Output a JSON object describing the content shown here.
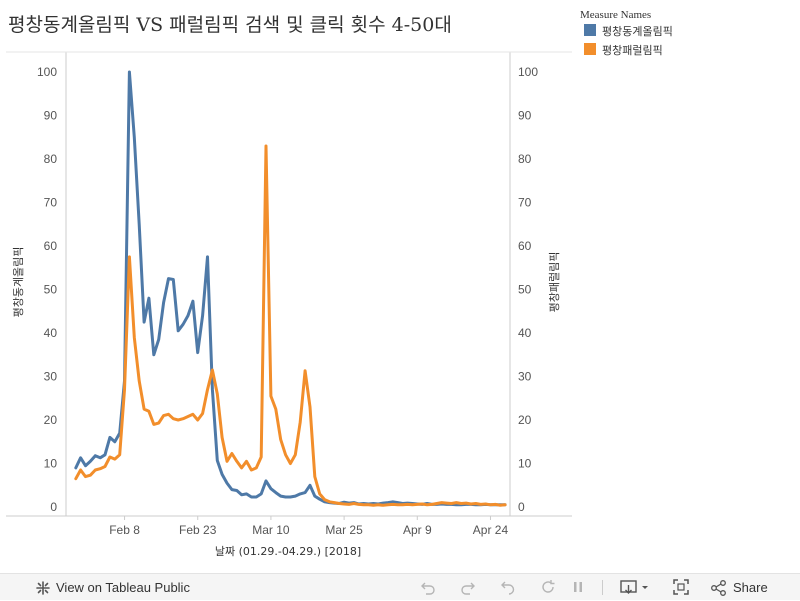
{
  "chart_data": {
    "type": "line",
    "title": "평창동계올림픽 VS 패럴림픽 검색 및 클릭 횟수 4-50대",
    "xlabel": "날짜 (01.29.-04.29.) [2018]",
    "ylabel_left": "평창동계올림픽",
    "ylabel_right": "평창패럴림픽",
    "ylim": [
      0,
      100
    ],
    "y_ticks": [
      0,
      10,
      20,
      30,
      40,
      50,
      60,
      70,
      80,
      90,
      100
    ],
    "x_day_range": [
      -2,
      89
    ],
    "x_ticks": [
      {
        "label": "Feb 8",
        "day": 10
      },
      {
        "label": "Feb 23",
        "day": 25
      },
      {
        "label": "Mar 10",
        "day": 40
      },
      {
        "label": "Mar 25",
        "day": 55
      },
      {
        "label": "Apr 9",
        "day": 70
      },
      {
        "label": "Apr 24",
        "day": 85
      }
    ],
    "legend_title": "Measure Names",
    "series": [
      {
        "name": "평창동계올림픽",
        "color": "#4e79a7",
        "points": [
          [
            0,
            9
          ],
          [
            1,
            11.3
          ],
          [
            2,
            9.5
          ],
          [
            3,
            10.5
          ],
          [
            4,
            11.8
          ],
          [
            5,
            11.3
          ],
          [
            6,
            12
          ],
          [
            7,
            16
          ],
          [
            8,
            15
          ],
          [
            9,
            17
          ],
          [
            10,
            29
          ],
          [
            11,
            100
          ],
          [
            12,
            85
          ],
          [
            13,
            65
          ],
          [
            14,
            42.5
          ],
          [
            15,
            48
          ],
          [
            16,
            35
          ],
          [
            17,
            38.5
          ],
          [
            18,
            47
          ],
          [
            19,
            52.5
          ],
          [
            20,
            52.3
          ],
          [
            21,
            40.5
          ],
          [
            22,
            42
          ],
          [
            23,
            44
          ],
          [
            24,
            47.3
          ],
          [
            25,
            35.5
          ],
          [
            26,
            44
          ],
          [
            27,
            57.5
          ],
          [
            28,
            27
          ],
          [
            29,
            10.7
          ],
          [
            30,
            7.5
          ],
          [
            31,
            5.5
          ],
          [
            32,
            4
          ],
          [
            33,
            3.8
          ],
          [
            34,
            2.8
          ],
          [
            35,
            3
          ],
          [
            36,
            2.3
          ],
          [
            37,
            2.3
          ],
          [
            38,
            3
          ],
          [
            39,
            6
          ],
          [
            40,
            4.2
          ],
          [
            41,
            3.3
          ],
          [
            42,
            2.5
          ],
          [
            43,
            2.3
          ],
          [
            44,
            2.3
          ],
          [
            45,
            2.5
          ],
          [
            46,
            3
          ],
          [
            47,
            3.3
          ],
          [
            48,
            5
          ],
          [
            49,
            2.5
          ],
          [
            50,
            1.8
          ],
          [
            51,
            1.2
          ],
          [
            52,
            1
          ],
          [
            53,
            0.9
          ],
          [
            54,
            0.8
          ],
          [
            55,
            1.1
          ],
          [
            56,
            0.9
          ],
          [
            57,
            1
          ],
          [
            58,
            0.7
          ],
          [
            59,
            0.8
          ],
          [
            60,
            0.7
          ],
          [
            61,
            0.8
          ],
          [
            62,
            0.7
          ],
          [
            63,
            0.9
          ],
          [
            64,
            1
          ],
          [
            65,
            1.2
          ],
          [
            66,
            1
          ],
          [
            67,
            0.8
          ],
          [
            68,
            0.9
          ],
          [
            69,
            0.8
          ],
          [
            70,
            0.7
          ],
          [
            71,
            0.6
          ],
          [
            72,
            0.8
          ],
          [
            73,
            0.6
          ],
          [
            74,
            0.6
          ],
          [
            75,
            0.7
          ],
          [
            76,
            0.6
          ],
          [
            77,
            0.6
          ],
          [
            78,
            0.5
          ],
          [
            79,
            0.5
          ],
          [
            80,
            0.6
          ],
          [
            81,
            0.6
          ],
          [
            82,
            0.5
          ],
          [
            83,
            0.5
          ],
          [
            84,
            0.6
          ],
          [
            85,
            0.5
          ],
          [
            86,
            0.5
          ],
          [
            87,
            0.5
          ],
          [
            88,
            0.5
          ]
        ]
      },
      {
        "name": "평창패럴림픽",
        "color": "#f28e2b",
        "points": [
          [
            0,
            6.5
          ],
          [
            1,
            8.5
          ],
          [
            2,
            7
          ],
          [
            3,
            7.3
          ],
          [
            4,
            8.5
          ],
          [
            5,
            8.8
          ],
          [
            6,
            9.3
          ],
          [
            7,
            11.5
          ],
          [
            8,
            11
          ],
          [
            9,
            12
          ],
          [
            10,
            27
          ],
          [
            11,
            57.5
          ],
          [
            12,
            39
          ],
          [
            13,
            29
          ],
          [
            14,
            22.5
          ],
          [
            15,
            22
          ],
          [
            16,
            19
          ],
          [
            17,
            19.3
          ],
          [
            18,
            21
          ],
          [
            19,
            21.3
          ],
          [
            20,
            20.3
          ],
          [
            21,
            20
          ],
          [
            22,
            20.3
          ],
          [
            23,
            20.8
          ],
          [
            24,
            21.3
          ],
          [
            25,
            20
          ],
          [
            26,
            21.5
          ],
          [
            27,
            27
          ],
          [
            28,
            31.5
          ],
          [
            29,
            26
          ],
          [
            30,
            16
          ],
          [
            31,
            10.5
          ],
          [
            32,
            12.3
          ],
          [
            33,
            10.5
          ],
          [
            34,
            9
          ],
          [
            35,
            10.5
          ],
          [
            36,
            8.5
          ],
          [
            37,
            9
          ],
          [
            38,
            11.5
          ],
          [
            39,
            83
          ],
          [
            40,
            25.5
          ],
          [
            41,
            22.5
          ],
          [
            42,
            15.5
          ],
          [
            43,
            12
          ],
          [
            44,
            10
          ],
          [
            45,
            12
          ],
          [
            46,
            19.5
          ],
          [
            47,
            31.3
          ],
          [
            48,
            23
          ],
          [
            49,
            7
          ],
          [
            50,
            3
          ],
          [
            51,
            1.7
          ],
          [
            52,
            1.2
          ],
          [
            53,
            1
          ],
          [
            54,
            0.8
          ],
          [
            55,
            0.7
          ],
          [
            56,
            0.6
          ],
          [
            57,
            0.8
          ],
          [
            58,
            0.6
          ],
          [
            59,
            0.5
          ],
          [
            60,
            0.5
          ],
          [
            61,
            0.4
          ],
          [
            62,
            0.5
          ],
          [
            63,
            0.4
          ],
          [
            64,
            0.5
          ],
          [
            65,
            0.6
          ],
          [
            66,
            0.5
          ],
          [
            67,
            0.5
          ],
          [
            68,
            0.6
          ],
          [
            69,
            0.5
          ],
          [
            70,
            0.6
          ],
          [
            71,
            0.7
          ],
          [
            72,
            0.5
          ],
          [
            73,
            0.6
          ],
          [
            74,
            0.8
          ],
          [
            75,
            1
          ],
          [
            76,
            0.9
          ],
          [
            77,
            0.8
          ],
          [
            78,
            1
          ],
          [
            79,
            0.8
          ],
          [
            80,
            0.9
          ],
          [
            81,
            0.7
          ],
          [
            82,
            0.8
          ],
          [
            83,
            0.6
          ],
          [
            84,
            0.7
          ],
          [
            85,
            0.5
          ],
          [
            86,
            0.6
          ],
          [
            87,
            0.4
          ],
          [
            88,
            0.5
          ]
        ]
      }
    ]
  },
  "toolbar": {
    "view_label": "View on Tableau Public",
    "share_label": "Share"
  }
}
